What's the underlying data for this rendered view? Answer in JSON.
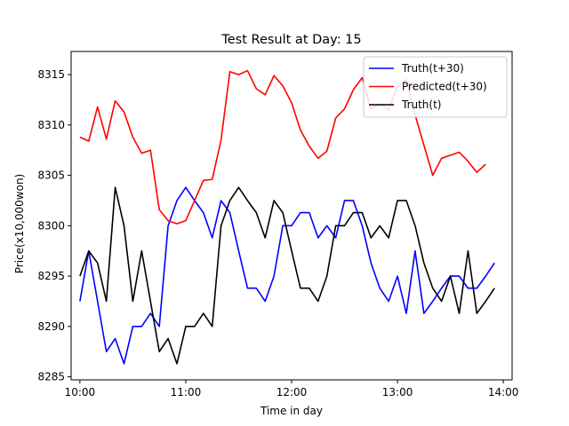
{
  "chart_data": {
    "type": "line",
    "title": "Test Result at Day: 15",
    "xlabel": "Time in day",
    "ylabel": "Price(x10,000won)",
    "xlim": [
      -0.083,
      4.083
    ],
    "ylim": [
      8284.7,
      8317.3
    ],
    "xticks": [
      0,
      1,
      2,
      3,
      4
    ],
    "xtick_labels": [
      "10:00",
      "11:00",
      "12:00",
      "13:00",
      "14:00"
    ],
    "yticks": [
      8285,
      8290,
      8295,
      8300,
      8305,
      8310,
      8315
    ],
    "ytick_labels": [
      "8285",
      "8290",
      "8295",
      "8300",
      "8305",
      "8310",
      "8315"
    ],
    "x": [
      0,
      0.0833,
      0.1667,
      0.25,
      0.3333,
      0.4167,
      0.5,
      0.5833,
      0.6667,
      0.75,
      0.8333,
      0.9167,
      1.0,
      1.0833,
      1.1667,
      1.25,
      1.3333,
      1.4167,
      1.5,
      1.5833,
      1.6667,
      1.75,
      1.8333,
      1.9167,
      2.0,
      2.0833,
      2.1667,
      2.25,
      2.3333,
      2.4167,
      2.5,
      2.5833,
      2.6667,
      2.75,
      2.8333,
      2.9167,
      3.0,
      3.0833,
      3.1667,
      3.25,
      3.3333,
      3.4167,
      3.5,
      3.5833,
      3.6667,
      3.75,
      3.8333,
      3.9167
    ],
    "series": [
      {
        "name": "Truth(t+30)",
        "color": "#0000ff",
        "values": [
          8292.5,
          8297.5,
          8292.5,
          8287.5,
          8288.8,
          8286.3,
          8290,
          8290,
          8291.3,
          8290,
          8300,
          8302.5,
          8303.8,
          8302.5,
          8301.3,
          8298.8,
          8302.5,
          8301.3,
          8297.5,
          8293.8,
          8293.8,
          8292.5,
          8295,
          8300,
          8300,
          8301.3,
          8301.3,
          8298.8,
          8300,
          8298.8,
          8302.5,
          8302.5,
          8300,
          8296.3,
          8293.8,
          8292.5,
          8295,
          8291.3,
          8297.5,
          8291.3,
          8292.5,
          8293.8,
          8295,
          8295,
          8293.8,
          8293.8,
          8295,
          8296.3
        ]
      },
      {
        "name": "Predicted(t+30)",
        "color": "#ff0000",
        "values": [
          8308.8,
          8308.4,
          8311.8,
          8308.6,
          8312.4,
          8311.3,
          8308.8,
          8307.2,
          8307.5,
          8301.6,
          8300.5,
          8300.2,
          8300.5,
          8302.5,
          8304.5,
          8304.6,
          8308.5,
          8315.3,
          8315,
          8315.4,
          8313.6,
          8313,
          8314.9,
          8313.9,
          8312.2,
          8309.5,
          8307.9,
          8306.7,
          8307.4,
          8310.7,
          8311.6,
          8313.5,
          8314.7,
          8311.6,
          8312.1,
          8311.5,
          8313.8,
          8314.5,
          8311,
          8308,
          8305,
          8306.7,
          8307,
          8307.3,
          8306.4,
          8305.3,
          8306.1,
          null
        ]
      },
      {
        "name": "Truth(t)",
        "color": "#000000",
        "values": [
          8295,
          8297.5,
          8296.3,
          8292.5,
          8303.8,
          8300,
          8292.5,
          8297.5,
          8292.5,
          8287.5,
          8288.8,
          8286.3,
          8290,
          8290,
          8291.3,
          8290,
          8300,
          8302.5,
          8303.8,
          8302.5,
          8301.3,
          8298.8,
          8302.5,
          8301.3,
          8297.5,
          8293.8,
          8293.8,
          8292.5,
          8295,
          8300,
          8300,
          8301.3,
          8301.3,
          8298.8,
          8300,
          8298.8,
          8302.5,
          8302.5,
          8300,
          8296.3,
          8293.8,
          8292.5,
          8295,
          8291.3,
          8297.5,
          8291.3,
          8292.5,
          8293.8
        ]
      }
    ],
    "legend_position": "upper-right",
    "grid": false
  }
}
